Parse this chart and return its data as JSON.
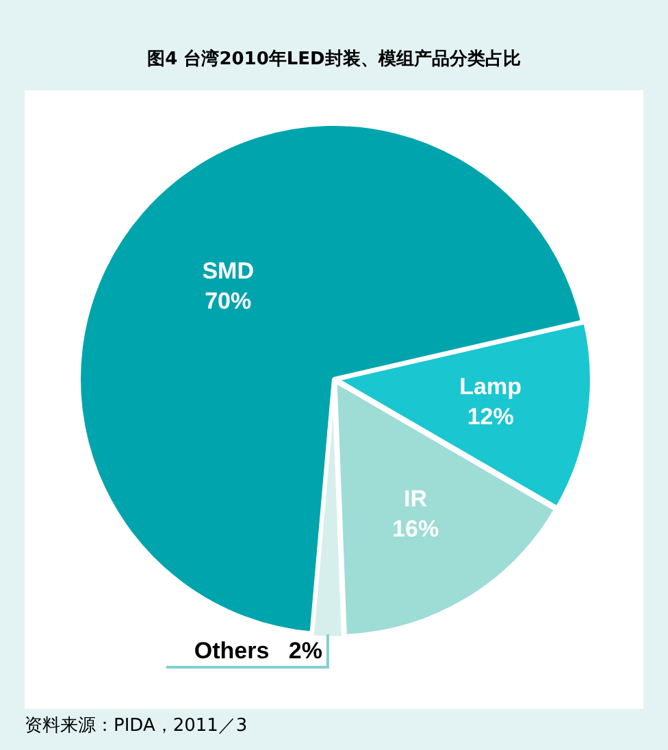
{
  "chart_data": {
    "type": "pie",
    "title": "图4  台湾2010年LED封装、模组产品分类占比",
    "categories": [
      "SMD",
      "Lamp",
      "IR",
      "Others"
    ],
    "values": [
      70,
      12,
      16,
      2
    ],
    "colors": [
      "#00a4ad",
      "#1ac6d0",
      "#9edcd6",
      "#d6efed"
    ],
    "value_labels": [
      "70%",
      "12%",
      "16%",
      "2%"
    ],
    "legend": false,
    "annotations": [
      "资料来源：PIDA，2011／3"
    ]
  }
}
